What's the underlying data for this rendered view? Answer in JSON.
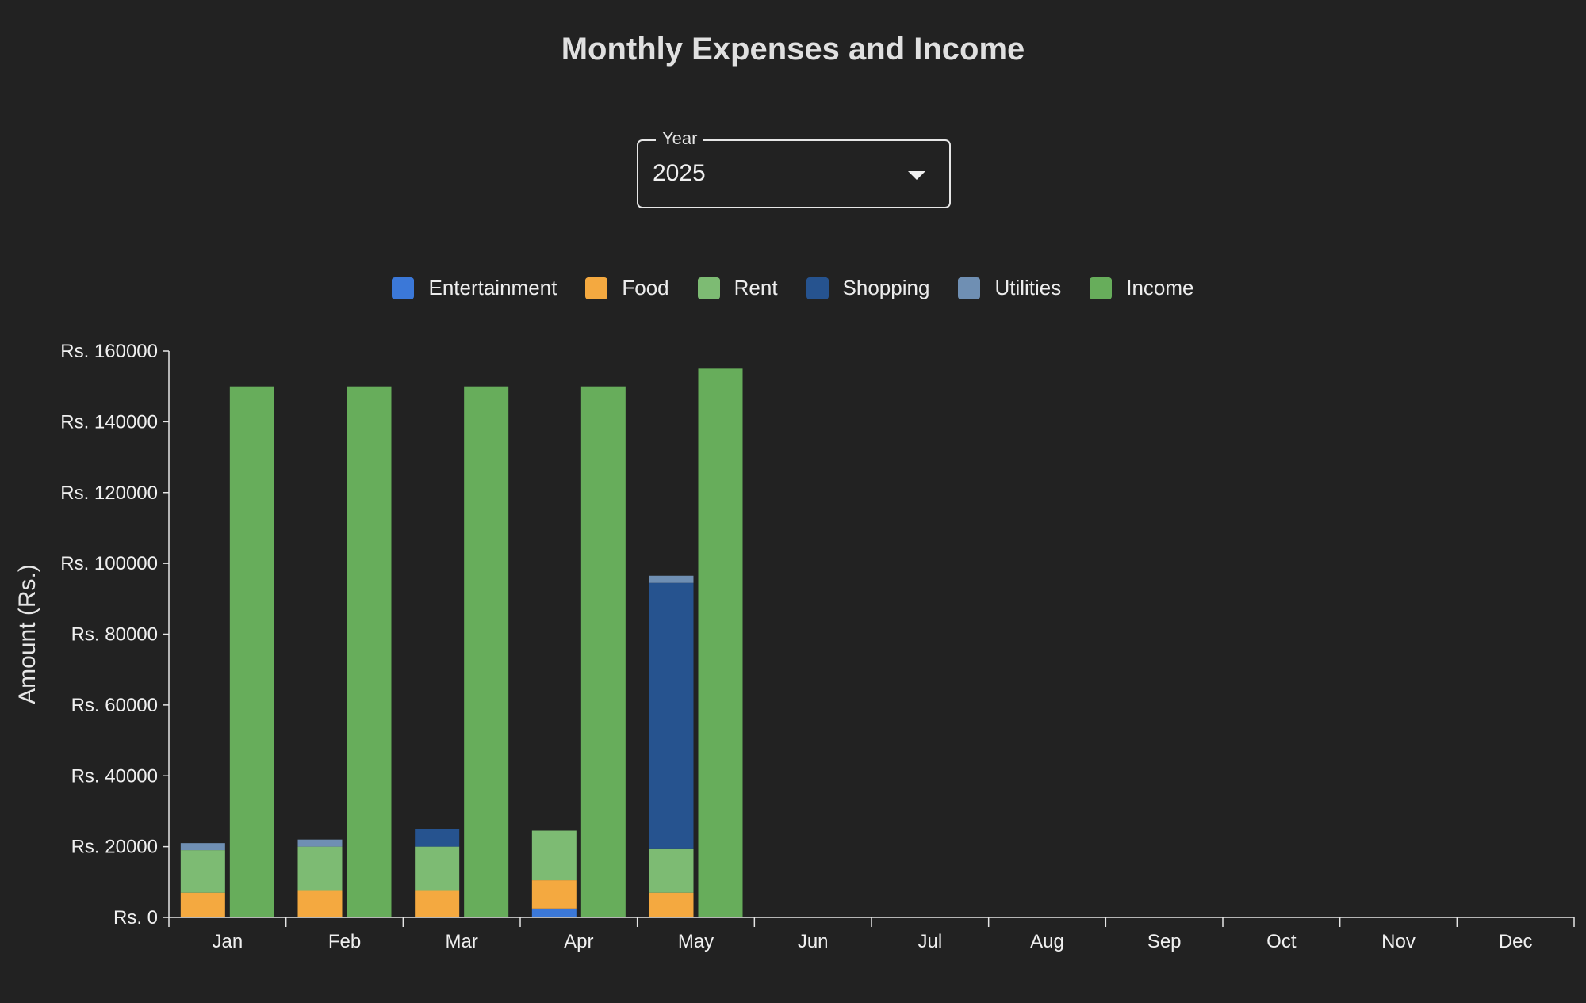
{
  "title": "Monthly Expenses and Income",
  "year_select": {
    "label": "Year",
    "value": "2025"
  },
  "chart_data": {
    "type": "bar",
    "stacked_expenses": true,
    "title": "Monthly Expenses and Income",
    "xlabel": "",
    "ylabel": "Amount (Rs.)",
    "ylim": [
      0,
      160000
    ],
    "yticks": [
      0,
      20000,
      40000,
      60000,
      80000,
      100000,
      120000,
      140000,
      160000
    ],
    "ytick_labels": [
      "Rs. 0",
      "Rs. 20000",
      "Rs. 40000",
      "Rs. 60000",
      "Rs. 80000",
      "Rs. 100000",
      "Rs. 120000",
      "Rs. 140000",
      "Rs. 160000"
    ],
    "categories": [
      "Jan",
      "Feb",
      "Mar",
      "Apr",
      "May",
      "Jun",
      "Jul",
      "Aug",
      "Sep",
      "Oct",
      "Nov",
      "Dec"
    ],
    "legend_position": "top-center",
    "grid": false,
    "series": [
      {
        "name": "Entertainment",
        "color": "#3b78d8",
        "stack": "expenses",
        "values": [
          0,
          0,
          0,
          2500,
          0,
          0,
          0,
          0,
          0,
          0,
          0,
          0
        ]
      },
      {
        "name": "Food",
        "color": "#f4a940",
        "stack": "expenses",
        "values": [
          7000,
          7500,
          7500,
          8000,
          7000,
          0,
          0,
          0,
          0,
          0,
          0,
          0
        ]
      },
      {
        "name": "Rent",
        "color": "#7dbb73",
        "stack": "expenses",
        "values": [
          12000,
          12500,
          12500,
          14000,
          12500,
          0,
          0,
          0,
          0,
          0,
          0,
          0
        ]
      },
      {
        "name": "Shopping",
        "color": "#26538f",
        "stack": "expenses",
        "values": [
          0,
          0,
          5000,
          0,
          75000,
          0,
          0,
          0,
          0,
          0,
          0,
          0
        ]
      },
      {
        "name": "Utilities",
        "color": "#6f8fb3",
        "stack": "expenses",
        "values": [
          2000,
          2000,
          0,
          0,
          2000,
          0,
          0,
          0,
          0,
          0,
          0,
          0
        ]
      },
      {
        "name": "Income",
        "color": "#67ad5b",
        "stack": "income",
        "values": [
          150000,
          150000,
          150000,
          150000,
          155000,
          0,
          0,
          0,
          0,
          0,
          0,
          0
        ]
      }
    ]
  }
}
